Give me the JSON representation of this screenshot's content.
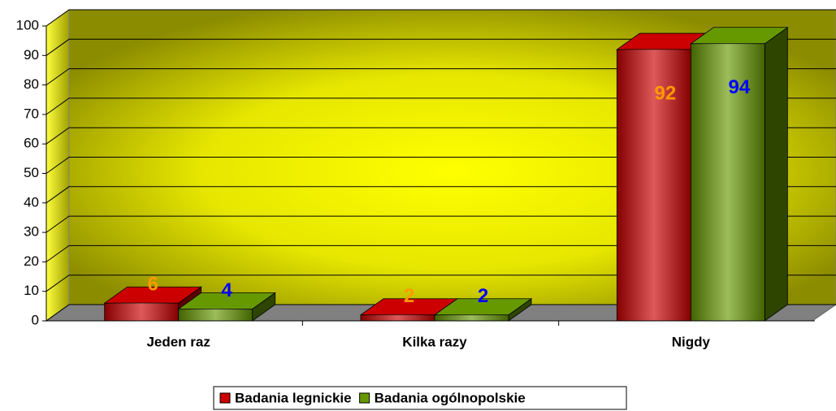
{
  "chart_data": {
    "type": "bar3d",
    "categories": [
      "Jeden raz",
      "Kilka razy",
      "Nigdy"
    ],
    "series": [
      {
        "name": "Badania legnickie",
        "color": "#cc0000",
        "label_color": "#ff9900",
        "values": [
          6,
          2,
          92
        ]
      },
      {
        "name": "Badania ogólnopolskie",
        "color": "#669900",
        "label_color": "#0000ff",
        "values": [
          4,
          2,
          94
        ]
      }
    ],
    "ylim": [
      0,
      100
    ],
    "yticks": [
      0,
      10,
      20,
      30,
      40,
      50,
      60,
      70,
      80,
      90,
      100
    ],
    "grid": true,
    "legend": "bottom"
  }
}
